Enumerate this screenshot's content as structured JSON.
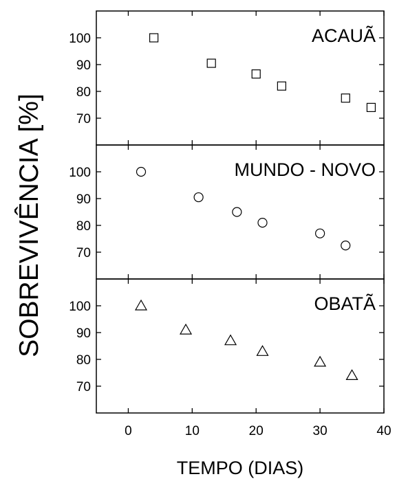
{
  "chart_data": {
    "type": "scatter",
    "xlabel": "TEMPO (DIAS)",
    "ylabel": "SOBREVIVÊNCIA [%]",
    "xlim": [
      -5,
      40
    ],
    "ylim": [
      60,
      110
    ],
    "x_ticks": [
      0,
      10,
      20,
      30,
      40
    ],
    "y_ticks": [
      70,
      80,
      90,
      100
    ],
    "panels": [
      {
        "title": "ACAUÃ",
        "marker": "square",
        "x": [
          4,
          13,
          20,
          24,
          34,
          38
        ],
        "y": [
          100,
          90.5,
          86.5,
          82,
          77.5,
          74
        ]
      },
      {
        "title": "MUNDO - NOVO",
        "marker": "circle",
        "x": [
          2,
          11,
          17,
          21,
          30,
          34
        ],
        "y": [
          100,
          90.5,
          85,
          81,
          77,
          72.5
        ]
      },
      {
        "title": "OBATÃ",
        "marker": "triangle",
        "x": [
          2,
          9,
          16,
          21,
          30,
          35
        ],
        "y": [
          100,
          91,
          87,
          83,
          79,
          74
        ]
      }
    ]
  }
}
